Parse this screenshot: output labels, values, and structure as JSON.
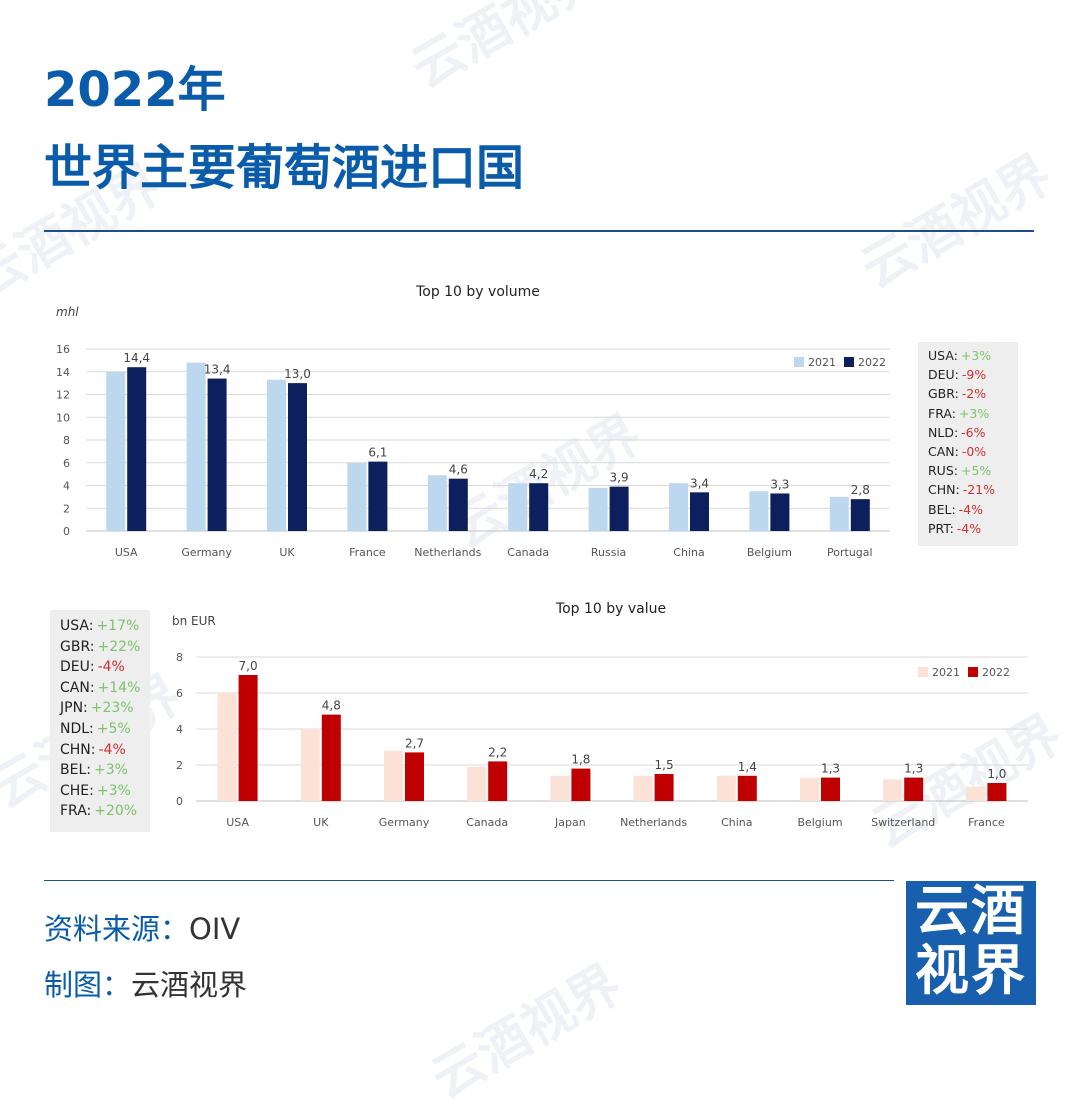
{
  "header": {
    "title_line1": "2022年",
    "title_line2": "世界主要葡萄酒进口国"
  },
  "watermark": "云酒视界",
  "colors": {
    "title_blue": "#0a5cab",
    "volume_2021": "#bdd7ee",
    "volume_2022": "#0d1f5c",
    "value_2021": "#fbe1d6",
    "value_2022": "#c00000",
    "positive_change": "#7cc36a",
    "negative_change": "#d32f2f",
    "logo_bg": "#1860ad"
  },
  "chart_data": [
    {
      "type": "bar",
      "title": "Top 10 by volume",
      "ylabel": "mhl",
      "ylim": [
        0,
        16
      ],
      "yticks": [
        0,
        2,
        4,
        6,
        8,
        10,
        12,
        14,
        16
      ],
      "grid": true,
      "legend_position": "top-right",
      "categories": [
        "USA",
        "Germany",
        "UK",
        "France",
        "Netherlands",
        "Canada",
        "Russia",
        "China",
        "Belgium",
        "Portugal"
      ],
      "series": [
        {
          "name": "2021",
          "values": [
            14.0,
            14.8,
            13.3,
            6.0,
            4.9,
            4.2,
            3.8,
            4.2,
            3.5,
            3.0
          ]
        },
        {
          "name": "2022",
          "values": [
            14.4,
            13.4,
            13.0,
            6.1,
            4.6,
            4.2,
            3.9,
            3.4,
            3.3,
            2.8
          ]
        }
      ],
      "data_labels": [
        "14,4",
        "13,4",
        "13,0",
        "6,1",
        "4,6",
        "4,2",
        "3,9",
        "3,4",
        "3,3",
        "2,8"
      ],
      "changes": [
        {
          "country": "USA:",
          "change": "+3%"
        },
        {
          "country": "DEU:",
          "change": "-9%"
        },
        {
          "country": "GBR:",
          "change": "-2%"
        },
        {
          "country": "FRA:",
          "change": "+3%"
        },
        {
          "country": "NLD:",
          "change": "-6%"
        },
        {
          "country": "CAN:",
          "change": "-0%"
        },
        {
          "country": "RUS:",
          "change": "+5%"
        },
        {
          "country": "CHN:",
          "change": "-21%"
        },
        {
          "country": "BEL:",
          "change": "-4%"
        },
        {
          "country": "PRT:",
          "change": "-4%"
        }
      ]
    },
    {
      "type": "bar",
      "title": "Top 10 by value",
      "ylabel": "bn EUR",
      "ylim": [
        0,
        8
      ],
      "yticks": [
        0,
        2,
        4,
        6,
        8
      ],
      "grid": true,
      "legend_position": "top-right",
      "categories": [
        "USA",
        "UK",
        "Germany",
        "Canada",
        "Japan",
        "Netherlands",
        "China",
        "Belgium",
        "Switzerland",
        "France"
      ],
      "series": [
        {
          "name": "2021",
          "values": [
            6.0,
            4.0,
            2.8,
            1.9,
            1.4,
            1.4,
            1.4,
            1.3,
            1.2,
            0.8
          ]
        },
        {
          "name": "2022",
          "values": [
            7.0,
            4.8,
            2.7,
            2.2,
            1.8,
            1.5,
            1.4,
            1.3,
            1.3,
            1.0
          ]
        }
      ],
      "data_labels": [
        "7,0",
        "4,8",
        "2,7",
        "2,2",
        "1,8",
        "1,5",
        "1,4",
        "1,3",
        "1,3",
        "1,0"
      ],
      "changes": [
        {
          "country": "USA:",
          "change": "+17%"
        },
        {
          "country": "GBR:",
          "change": "+22%"
        },
        {
          "country": "DEU:",
          "change": "-4%"
        },
        {
          "country": "CAN:",
          "change": "+14%"
        },
        {
          "country": "JPN:",
          "change": "+23%"
        },
        {
          "country": "NDL:",
          "change": "+5%"
        },
        {
          "country": "CHN:",
          "change": "-4%"
        },
        {
          "country": "BEL:",
          "change": "+3%"
        },
        {
          "country": "CHE:",
          "change": "+3%"
        },
        {
          "country": "FRA:",
          "change": "+20%"
        }
      ]
    }
  ],
  "footer": {
    "source_label": "资料来源：",
    "source_value": "OIV",
    "credit_label": "制图：",
    "credit_value": "云酒视界",
    "logo_line1": "云酒",
    "logo_line2": "视界"
  }
}
